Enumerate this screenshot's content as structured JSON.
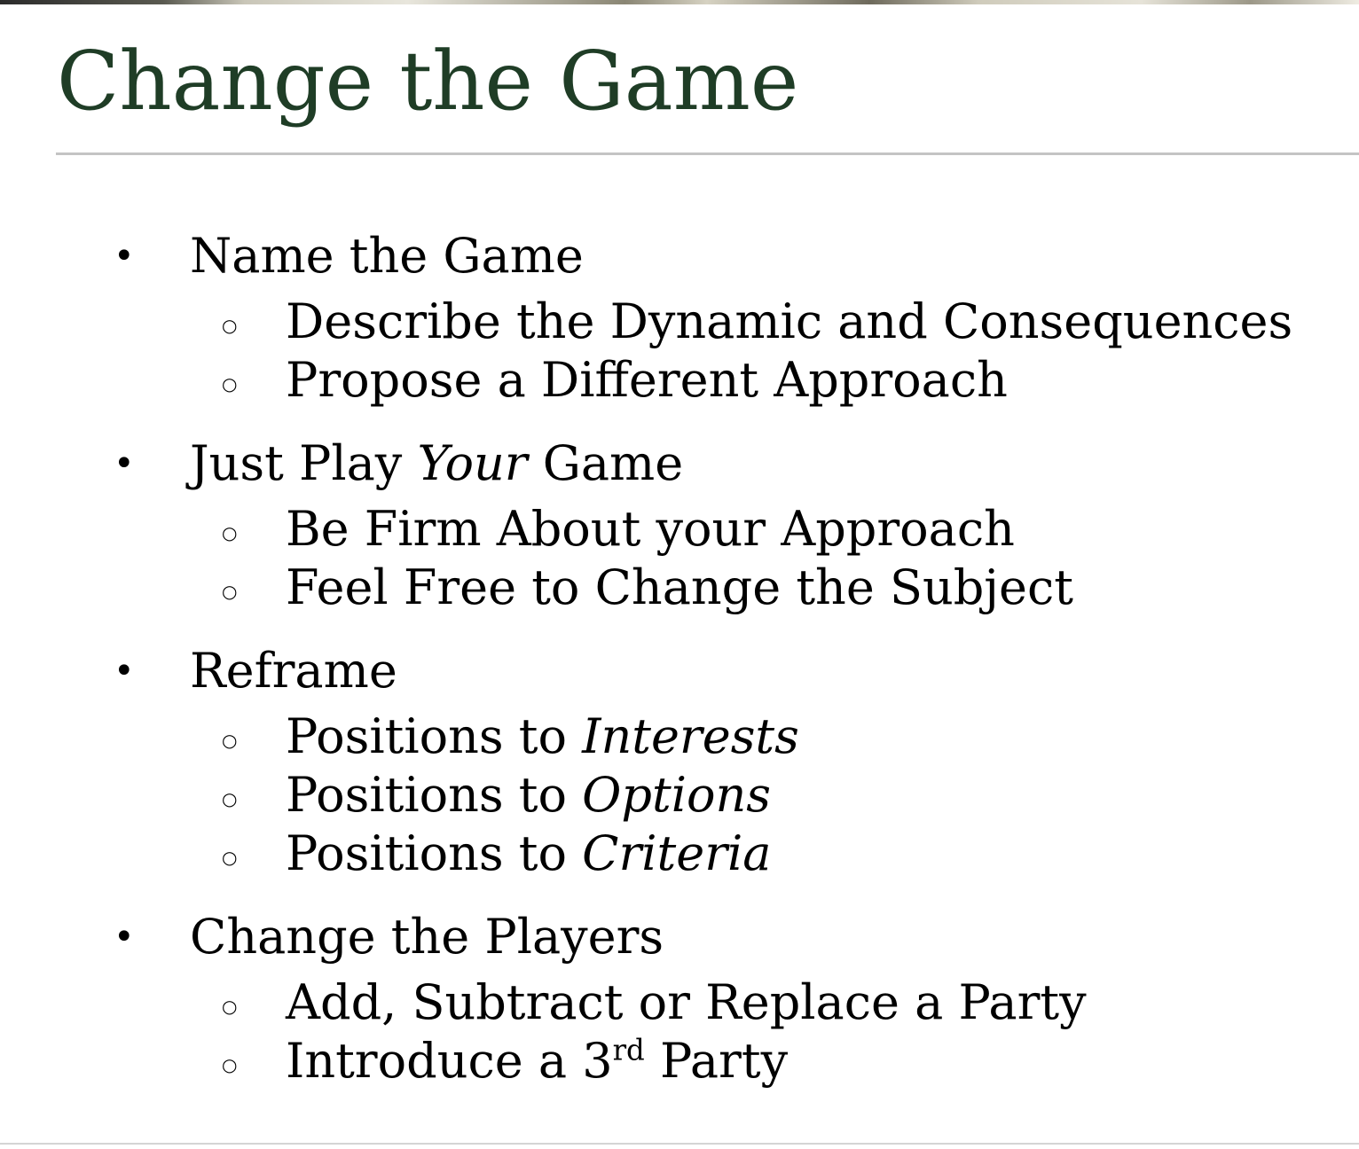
{
  "slide": {
    "title": "Change the Game"
  },
  "bullets": [
    {
      "text": "Name the Game",
      "subitems": [
        {
          "parts": [
            {
              "t": "Describe the Dynamic and Consequences"
            }
          ]
        },
        {
          "parts": [
            {
              "t": "Propose a Different Approach"
            }
          ]
        }
      ]
    },
    {
      "parts": [
        {
          "t": "Just Play "
        },
        {
          "t": "Your",
          "em": true
        },
        {
          "t": " Game"
        }
      ],
      "subitems": [
        {
          "parts": [
            {
              "t": "Be Firm About your Approach"
            }
          ]
        },
        {
          "parts": [
            {
              "t": "Feel Free to Change the Subject"
            }
          ]
        }
      ]
    },
    {
      "text": "Reframe",
      "subitems": [
        {
          "parts": [
            {
              "t": "Positions to "
            },
            {
              "t": "Interests",
              "em": true
            }
          ]
        },
        {
          "parts": [
            {
              "t": "Positions to "
            },
            {
              "t": "Options",
              "em": true
            }
          ]
        },
        {
          "parts": [
            {
              "t": "Positions to "
            },
            {
              "t": "Criteria",
              "em": true
            }
          ]
        }
      ]
    },
    {
      "text": "Change the Players",
      "subitems": [
        {
          "parts": [
            {
              "t": "Add, Subtract or Replace a Party"
            }
          ]
        },
        {
          "parts": [
            {
              "t": "Introduce a 3"
            },
            {
              "t": "rd",
              "sup": true
            },
            {
              "t": " Party"
            }
          ]
        }
      ]
    }
  ],
  "markers": {
    "level1": "•",
    "level2": "○"
  },
  "colors": {
    "title": "#1f3d26",
    "text": "#000000",
    "rule": "#c4c4c4"
  }
}
